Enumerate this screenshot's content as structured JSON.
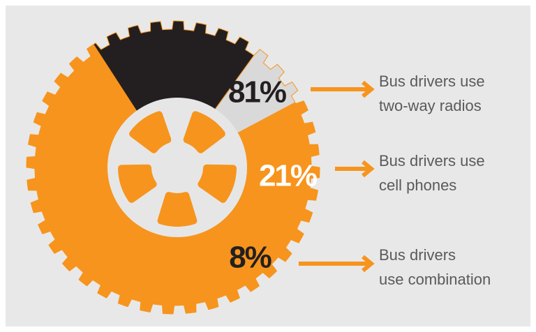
{
  "chart_data": {
    "type": "pie",
    "values": [
      81,
      21,
      8
    ],
    "value_labels": [
      "81%",
      "21%",
      "8%"
    ],
    "colors": [
      "#f7941d",
      "#231f20",
      "#d9d9d9"
    ],
    "label_lines": [
      [
        "Bus drivers use",
        "two-way radios"
      ],
      [
        "Bus drivers use",
        "cell phones"
      ],
      [
        "Bus drivers",
        "use combination"
      ]
    ]
  }
}
